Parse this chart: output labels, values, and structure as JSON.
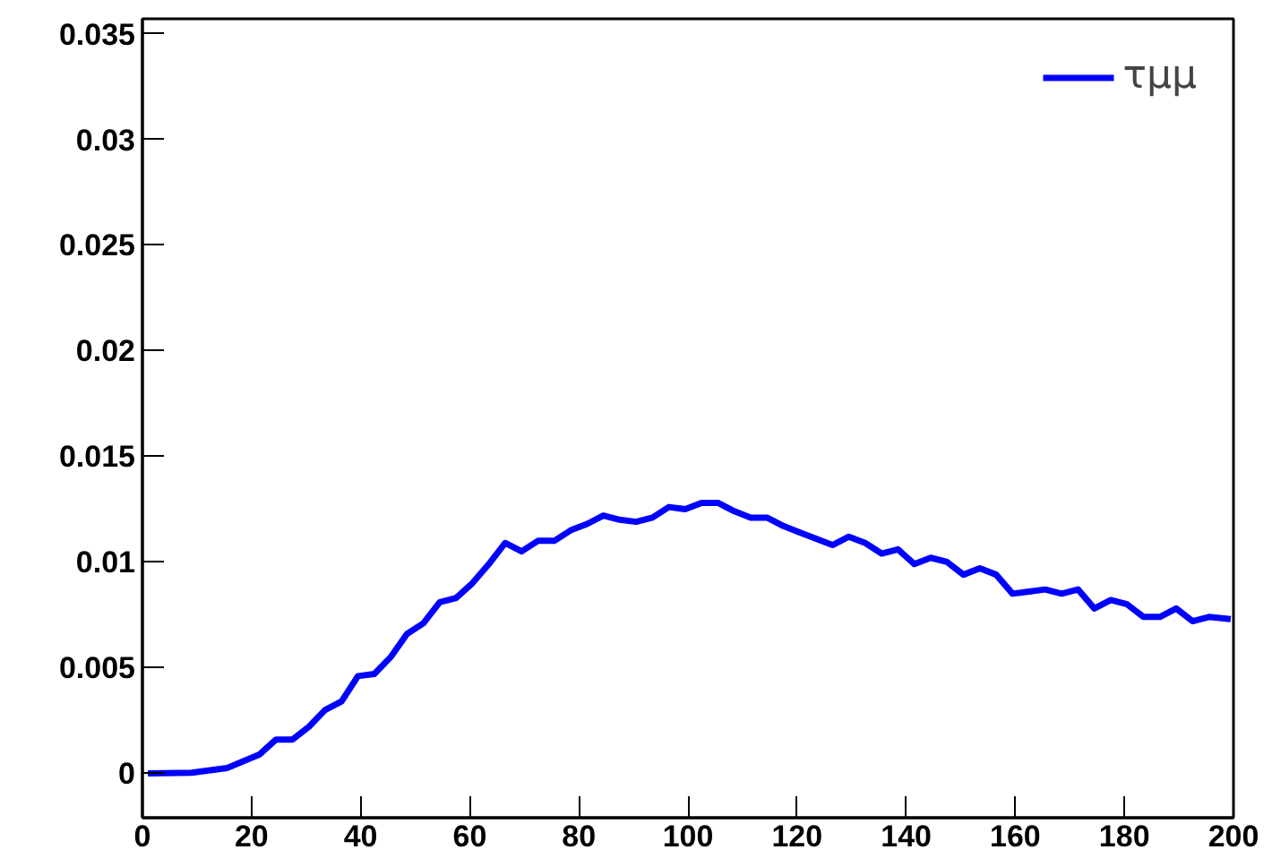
{
  "chart_data": {
    "type": "line",
    "xlim": [
      0,
      200
    ],
    "ylim": [
      -0.0021,
      0.0357
    ],
    "xticks": [
      0,
      20,
      40,
      60,
      80,
      100,
      120,
      140,
      160,
      180,
      200
    ],
    "yticks": [
      0,
      0.005,
      0.01,
      0.015,
      0.02,
      0.025,
      0.03,
      0.035
    ],
    "grid": false,
    "legend": "top right",
    "marker": "none",
    "line_style": "solid",
    "x": [
      1,
      9,
      15.5,
      21.5,
      24.5,
      27.5,
      30.5,
      33.5,
      36.5,
      39.5,
      42.5,
      45.5,
      48.5,
      51.5,
      54.5,
      57.5,
      60.5,
      63.5,
      66.5,
      69.5,
      72.5,
      75.5,
      78.5,
      81.5,
      84.5,
      87.5,
      90.5,
      93.5,
      96.5,
      99.5,
      102.5,
      105.5,
      108.5,
      111.5,
      114.5,
      117.5,
      120.5,
      123.5,
      126.5,
      129.5,
      132.5,
      135.5,
      138.5,
      141.5,
      144.5,
      147.5,
      150.5,
      153.5,
      156.5,
      159.5,
      162.5,
      165.5,
      168.5,
      171.5,
      174.5,
      177.5,
      180.5,
      183.5,
      186.5,
      189.5,
      192.5,
      195.5,
      199.5
    ],
    "series": [
      {
        "name": "τμμ",
        "color": "#0000ff",
        "values": [
          0,
          3e-05,
          0.00025,
          0.0009,
          0.0016,
          0.0016,
          0.0022,
          0.003,
          0.0034,
          0.0046,
          0.0047,
          0.0055,
          0.0066,
          0.0071,
          0.0081,
          0.0083,
          0.009,
          0.0099,
          0.0109,
          0.0105,
          0.011,
          0.011,
          0.0115,
          0.0118,
          0.0122,
          0.012,
          0.0119,
          0.0121,
          0.0126,
          0.0125,
          0.0128,
          0.0128,
          0.0124,
          0.0121,
          0.0121,
          0.0117,
          0.0114,
          0.0111,
          0.0108,
          0.0112,
          0.0109,
          0.0104,
          0.0106,
          0.0099,
          0.0102,
          0.01,
          0.0094,
          0.0097,
          0.0094,
          0.0085,
          0.0086,
          0.0087,
          0.0085,
          0.0087,
          0.0078,
          0.0082,
          0.008,
          0.0074,
          0.0074,
          0.0078,
          0.0072,
          0.0074,
          0.0073
        ]
      }
    ]
  }
}
